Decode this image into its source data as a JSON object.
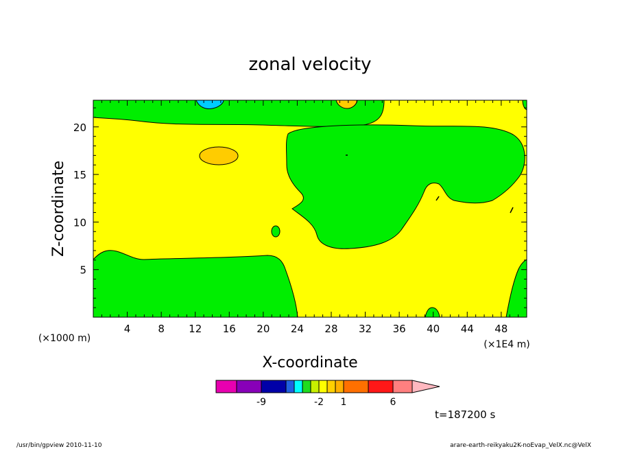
{
  "chart_data": {
    "type": "contour",
    "title": "zonal velocity",
    "xlabel": "X-coordinate",
    "ylabel": "Z-coordinate",
    "x_unit_left": "(×1000 m)",
    "x_unit_right": "(×1E4 m)",
    "xlim": [
      0,
      51
    ],
    "ylim": [
      0,
      22.8
    ],
    "x_ticks": [
      "4",
      "8",
      "12",
      "16",
      "20",
      "24",
      "28",
      "32",
      "36",
      "40",
      "44",
      "48"
    ],
    "x_tick_values": [
      4,
      8,
      12,
      16,
      20,
      24,
      28,
      32,
      36,
      40,
      44,
      48
    ],
    "y_ticks": [
      "5",
      "10",
      "15",
      "20"
    ],
    "y_tick_values": [
      5,
      10,
      15,
      20
    ],
    "colorbar": {
      "labels": [
        "-9",
        "-2",
        "1",
        "6"
      ],
      "colors": [
        "#e800b0",
        "#8800b8",
        "#0000a8",
        "#2060e0",
        "#00ffff",
        "#20dd20",
        "#c8f000",
        "#ffff00",
        "#ffd000",
        "#ffb000",
        "#ff7000",
        "#ff1818",
        "#ff8080",
        "#ffb8c0"
      ]
    },
    "regions": [
      {
        "name": "green",
        "color": "#00ee00"
      },
      {
        "name": "yellow",
        "color": "#ffff00"
      },
      {
        "name": "orange",
        "color": "#ffcc00"
      },
      {
        "name": "cyan",
        "color": "#00ccff"
      }
    ]
  },
  "time_label": "t=187200 s",
  "footer": {
    "left": "/usr/bin/gpview  2010-11-10",
    "right": "arare-earth-reikyaku2K-noEvap_VelX.nc@VelX"
  }
}
